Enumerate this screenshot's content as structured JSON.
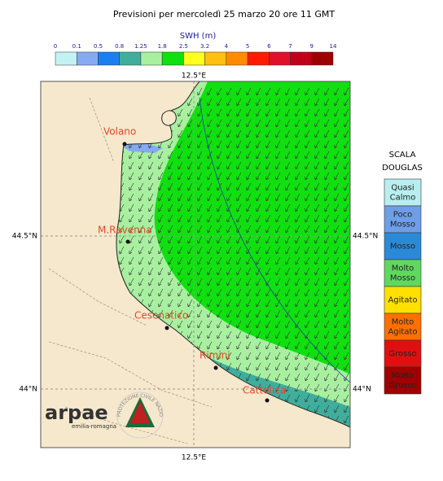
{
  "header": {
    "title": "Previsioni per mercoledì 25 marzo 20 ore 11 GMT"
  },
  "colorbar": {
    "title": "SWH (m)",
    "ticks": [
      "0",
      "0.1",
      "0.5",
      "0.8",
      "1.25",
      "1.8",
      "2.5",
      "3.2",
      "4",
      "5",
      "6",
      "7",
      "9",
      "14"
    ],
    "colors": [
      "#c4f2f2",
      "#86aaf2",
      "#1c7ff0",
      "#3fae9c",
      "#a8f0a0",
      "#10e010",
      "#ffff20",
      "#ffc010",
      "#ff8c00",
      "#ff1a00",
      "#e0102a",
      "#c00018",
      "#9c0000"
    ]
  },
  "axes": {
    "top": "12.5°E",
    "bottom": "12.5°E",
    "left": [
      "44.5°N",
      "44°N"
    ],
    "right": [
      "44.5°N",
      "44°N"
    ]
  },
  "cities": [
    "Volano",
    "M.Ravenna",
    "Cesenatico",
    "Rimini",
    "Cattolica"
  ],
  "douglas": {
    "title": [
      "SCALA",
      "DOUGLAS"
    ],
    "levels": [
      [
        "Quasi",
        "Calmo"
      ],
      [
        "Poco",
        "Mosso"
      ],
      [
        "Mosso"
      ],
      [
        "Molto",
        "Mosso"
      ],
      [
        "Agitato"
      ],
      [
        "Molto",
        "Agitato"
      ],
      [
        "Grosso"
      ],
      [
        "Molto",
        "Grosso"
      ]
    ],
    "colors": [
      "#b8eef0",
      "#6e9ee8",
      "#2a8ad8",
      "#60d860",
      "#ffe000",
      "#ff7000",
      "#e01010",
      "#a00000"
    ]
  },
  "logo": {
    "name": "arpae",
    "region": "emilia-romagna",
    "seal": "PROTEZIONE CIVILE NAZIONALE"
  }
}
